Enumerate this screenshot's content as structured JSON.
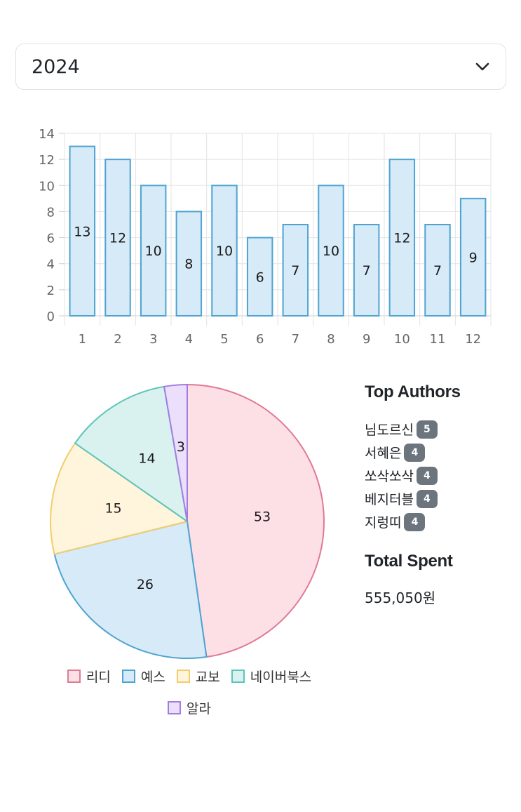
{
  "year_select": {
    "value": "2024",
    "icon": "chevron-down-icon"
  },
  "chart_data": [
    {
      "type": "bar",
      "categories": [
        "1",
        "2",
        "3",
        "4",
        "5",
        "6",
        "7",
        "8",
        "9",
        "10",
        "11",
        "12"
      ],
      "values": [
        13,
        12,
        10,
        8,
        10,
        6,
        7,
        10,
        7,
        12,
        7,
        9
      ],
      "ylim": [
        0,
        14
      ],
      "yticks": [
        0,
        2,
        4,
        6,
        8,
        10,
        12,
        14
      ],
      "grid": true,
      "colors": {
        "fill": "#d6eaf8",
        "stroke": "#4ea3d1"
      }
    },
    {
      "type": "pie",
      "labels": [
        "리디",
        "예스",
        "교보",
        "네이버북스",
        "알라"
      ],
      "values": [
        53,
        26,
        15,
        14,
        3
      ],
      "colors": {
        "fills": [
          "#fde0e6",
          "#d6eaf8",
          "#fff4dc",
          "#d9f2ef",
          "#ebdffb"
        ],
        "strokes": [
          "#e07a93",
          "#4ea3d1",
          "#f2cd6a",
          "#5cc4b9",
          "#a07ee0"
        ]
      },
      "legend": "bottom"
    }
  ],
  "top_authors": {
    "title": "Top Authors",
    "items": [
      {
        "name": "님도르신",
        "count": "5"
      },
      {
        "name": "서혜은",
        "count": "4"
      },
      {
        "name": "쏘삭쏘삭",
        "count": "4"
      },
      {
        "name": "베지터블",
        "count": "4"
      },
      {
        "name": "지렁띠",
        "count": "4"
      }
    ]
  },
  "total_spent": {
    "title": "Total Spent",
    "value": "555,050원"
  }
}
